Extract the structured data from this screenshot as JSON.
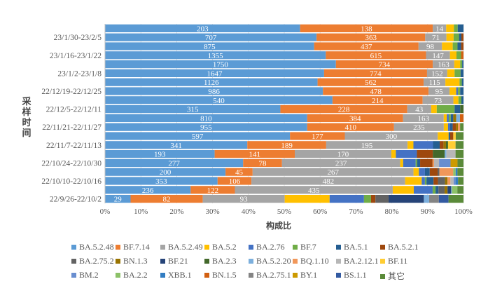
{
  "chart_data": {
    "type": "bar",
    "orientation": "horizontal",
    "stacked": "percent",
    "title": "",
    "xlabel": "构成比",
    "ylabel": "采样时间",
    "xlim": [
      0,
      100
    ],
    "xticks": [
      "0%",
      "10%",
      "20%",
      "30%",
      "40%",
      "50%",
      "60%",
      "70%",
      "80%",
      "90%",
      "100%"
    ],
    "grid": true,
    "legend_position": "bottom",
    "categories": [
      "",
      "23/1/30-23/2/5",
      "",
      "23/1/16-23/1/22",
      "",
      "23/1/2-23/1/8",
      "",
      "22/12/19-22/12/25",
      "",
      "22/12/5-22/12/11",
      "",
      "22/11/21-22/11/27",
      "",
      "22/11/7-22/11/13",
      "",
      "22/10/24-22/10/30",
      "",
      "22/10/10-22/10/16",
      "",
      "22/9/26-22/10/2"
    ],
    "labeled_series": 3,
    "series": [
      {
        "name": "BA.5.2.48",
        "color": "#5B9BD5",
        "values": [
          203,
          707,
          875,
          1355,
          1750,
          1647,
          1126,
          986,
          540,
          315,
          810,
          955,
          597,
          341,
          193,
          277,
          200,
          353,
          236,
          29
        ]
      },
      {
        "name": "BF.7.14",
        "color": "#ED7D31",
        "values": [
          138,
          363,
          437,
          615,
          734,
          774,
          562,
          478,
          214,
          228,
          384,
          410,
          177,
          189,
          141,
          78,
          45,
          106,
          122,
          82
        ]
      },
      {
        "name": "BA.5.2.49",
        "color": "#A5A5A5",
        "values": [
          14,
          71,
          98,
          147,
          163,
          152,
          115,
          95,
          73,
          43,
          163,
          235,
          300,
          195,
          170,
          237,
          267,
          482,
          435,
          93
        ]
      },
      {
        "name": "BA.5.2",
        "color": "#FFC000",
        "values": [
          8,
          24,
          45,
          40,
          45,
          55,
          75,
          30,
          12,
          10,
          12,
          20,
          35,
          14,
          8,
          6,
          9,
          52,
          58,
          51
        ]
      },
      {
        "name": "BA.2.76",
        "color": "#4472C4",
        "values": [
          0,
          0,
          0,
          0,
          0,
          0,
          0,
          8,
          0,
          0,
          8,
          10,
          0,
          47,
          37,
          25,
          10,
          10,
          52,
          39
        ]
      },
      {
        "name": "BF.7",
        "color": "#70AD47",
        "values": [
          4,
          18,
          20,
          28,
          15,
          45,
          12,
          10,
          7,
          32,
          8,
          0,
          0,
          0,
          0,
          3,
          0,
          5,
          8,
          8
        ]
      },
      {
        "name": "BA.5.1",
        "color": "#255E91",
        "values": [
          6,
          8,
          15,
          0,
          10,
          22,
          9,
          15,
          5,
          10,
          10,
          12,
          5,
          16,
          0,
          6,
          8,
          22,
          8,
          0
        ]
      },
      {
        "name": "BA.5.2.1",
        "color": "#9E480E",
        "values": [
          0,
          7,
          10,
          0,
          0,
          0,
          0,
          0,
          0,
          0,
          0,
          15,
          10,
          9,
          28,
          25,
          13,
          14,
          0,
          5
        ]
      },
      {
        "name": "BA.2.75.2",
        "color": "#636363",
        "values": [
          0,
          0,
          0,
          0,
          0,
          0,
          0,
          0,
          0,
          0,
          0,
          0,
          0,
          0,
          0,
          0,
          3,
          22,
          17,
          15
        ]
      },
      {
        "name": "BN.1.3",
        "color": "#997300",
        "values": [
          0,
          0,
          0,
          0,
          0,
          0,
          0,
          0,
          0,
          0,
          12,
          10,
          0,
          6,
          0,
          0,
          0,
          8,
          8,
          0
        ]
      },
      {
        "name": "BF.21",
        "color": "#264478",
        "values": [
          0,
          0,
          0,
          0,
          0,
          0,
          0,
          0,
          0,
          0,
          0,
          0,
          0,
          0,
          0,
          0,
          0,
          0,
          10,
          40
        ]
      },
      {
        "name": "BA.2.3",
        "color": "#43682B",
        "values": [
          0,
          0,
          0,
          0,
          0,
          0,
          0,
          0,
          0,
          6,
          0,
          0,
          0,
          5,
          21,
          0,
          0,
          0,
          0,
          0
        ]
      },
      {
        "name": "BA.5.2.20",
        "color": "#7CAFDD",
        "values": [
          0,
          0,
          0,
          0,
          0,
          0,
          0,
          0,
          0,
          0,
          15,
          0,
          0,
          0,
          3,
          0,
          0,
          0,
          2,
          6
        ]
      },
      {
        "name": "BQ.1.10",
        "color": "#F1975A",
        "values": [
          0,
          0,
          0,
          0,
          0,
          0,
          0,
          0,
          0,
          0,
          0,
          10,
          0,
          0,
          0,
          3,
          23,
          9,
          0,
          0
        ]
      },
      {
        "name": "BA.2.12.1",
        "color": "#B7B7B7",
        "values": [
          0,
          0,
          0,
          0,
          0,
          0,
          0,
          0,
          0,
          0,
          0,
          0,
          0,
          0,
          16,
          10,
          0,
          10,
          0,
          0
        ]
      },
      {
        "name": "BF.11",
        "color": "#FFCD33",
        "values": [
          0,
          0,
          0,
          0,
          0,
          0,
          0,
          0,
          0,
          0,
          0,
          0,
          8,
          18,
          0,
          0,
          0,
          0,
          0,
          0
        ]
      },
      {
        "name": "BM.2",
        "color": "#698ED0",
        "values": [
          0,
          0,
          0,
          0,
          0,
          0,
          0,
          0,
          0,
          0,
          0,
          0,
          0,
          0,
          0,
          23,
          0,
          6,
          0,
          0
        ]
      },
      {
        "name": "BA.2.2",
        "color": "#8CC168",
        "values": [
          0,
          0,
          0,
          0,
          0,
          0,
          0,
          0,
          0,
          0,
          0,
          0,
          0,
          0,
          0,
          0,
          4,
          0,
          15,
          0
        ]
      },
      {
        "name": "XBB.1",
        "color": "#327DC2",
        "values": [
          0,
          0,
          0,
          0,
          0,
          0,
          0,
          0,
          0,
          0,
          0,
          0,
          0,
          0,
          0,
          0,
          3,
          8,
          0,
          0
        ]
      },
      {
        "name": "BN.1.5",
        "color": "#D26012",
        "values": [
          0,
          0,
          0,
          15,
          0,
          0,
          0,
          0,
          0,
          0,
          14,
          0,
          0,
          0,
          0,
          0,
          0,
          0,
          0,
          0
        ]
      },
      {
        "name": "BA.2.75.1",
        "color": "#848484",
        "values": [
          0,
          0,
          0,
          0,
          0,
          0,
          0,
          0,
          0,
          0,
          0,
          0,
          0,
          0,
          0,
          0,
          0,
          0,
          0,
          11
        ]
      },
      {
        "name": "BY.1",
        "color": "#CC9A00",
        "values": [
          0,
          0,
          0,
          0,
          0,
          0,
          0,
          0,
          0,
          0,
          0,
          0,
          0,
          0,
          0,
          14,
          0,
          0,
          0,
          0
        ]
      },
      {
        "name": "BS.1.1",
        "color": "#335AA1",
        "values": [
          0,
          0,
          0,
          0,
          0,
          0,
          0,
          0,
          0,
          0,
          0,
          0,
          0,
          0,
          0,
          0,
          0,
          0,
          0,
          11
        ]
      },
      {
        "name": "其它",
        "color": "#5A8A39",
        "values": [
          0,
          0,
          0,
          0,
          0,
          0,
          0,
          0,
          0,
          0,
          0,
          16,
          25,
          19,
          14,
          12,
          10,
          17,
          17,
          17
        ]
      }
    ]
  }
}
